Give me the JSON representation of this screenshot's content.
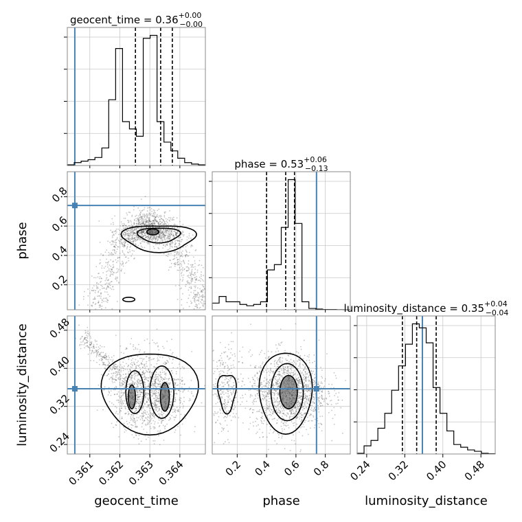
{
  "chart_data": {
    "type": "corner",
    "colors": {
      "truth": "#4682b4",
      "hist": "#000000",
      "grid": "#c8c8c8",
      "scatter": "#555555",
      "frame": "#888888"
    },
    "parameters": [
      {
        "key": "geocent_time",
        "label": "geocent_time",
        "title": {
          "prefix": "geocent_time = 0.36",
          "sup": "+0.00",
          "sub": "−0.00"
        },
        "range": [
          0.36025,
          0.36485
        ],
        "ticks": [
          0.361,
          0.362,
          0.363,
          0.364
        ],
        "tick_labels": [
          "0.361",
          "0.362",
          "0.363",
          "0.364"
        ],
        "truth": 0.3605,
        "quantiles": [
          0.36252,
          0.36336,
          0.36375
        ],
        "hist": {
          "edges": [
            0.36025,
            0.36048,
            0.36071,
            0.36094,
            0.36117,
            0.3614,
            0.36163,
            0.36186,
            0.36209,
            0.36232,
            0.36255,
            0.36278,
            0.36301,
            0.36324,
            0.36347,
            0.3637,
            0.36393,
            0.36416,
            0.36439,
            0.36462,
            0.36485
          ],
          "counts": [
            0.005,
            0.02,
            0.03,
            0.04,
            0.055,
            0.12,
            0.45,
            0.8,
            0.3,
            0.25,
            0.2,
            0.87,
            0.89,
            0.3,
            0.16,
            0.1,
            0.05,
            0.02,
            0.01,
            0.005
          ]
        }
      },
      {
        "key": "phase",
        "label": "phase",
        "title": {
          "prefix": "phase = 0.53",
          "sup": "+0.06",
          "sub": "−0.13"
        },
        "range": [
          0.03,
          0.97
        ],
        "ticks": [
          0.2,
          0.4,
          0.6,
          0.8
        ],
        "tick_labels": [
          "0.2",
          "0.4",
          "0.6",
          "0.8"
        ],
        "truth": 0.74,
        "quantiles": [
          0.4,
          0.53,
          0.59
        ],
        "hist": {
          "edges": [
            0.03,
            0.077,
            0.124,
            0.171,
            0.218,
            0.265,
            0.312,
            0.359,
            0.406,
            0.453,
            0.5,
            0.547,
            0.594,
            0.641,
            0.688,
            0.735,
            0.782,
            0.829,
            0.876,
            0.923,
            0.97
          ],
          "counts": [
            0.05,
            0.1,
            0.06,
            0.06,
            0.04,
            0.03,
            0.04,
            0.06,
            0.3,
            0.34,
            0.62,
            0.98,
            0.65,
            0.06,
            0.01,
            0.005,
            0.002,
            0.002,
            0.001,
            0.0
          ]
        }
      },
      {
        "key": "luminosity_distance",
        "label": "luminosity_distance",
        "title": {
          "prefix": "luminosity_distance = 0.35",
          "sup": "+0.04",
          "sub": "−0.04"
        },
        "range": [
          0.22,
          0.51
        ],
        "ticks": [
          0.24,
          0.32,
          0.4,
          0.48
        ],
        "tick_labels": [
          "0.24",
          "0.32",
          "0.40",
          "0.48"
        ],
        "truth": 0.357,
        "quantiles": [
          0.315,
          0.345,
          0.386
        ],
        "hist": {
          "edges": [
            0.22,
            0.2345,
            0.249,
            0.2635,
            0.278,
            0.2925,
            0.307,
            0.3215,
            0.336,
            0.3505,
            0.365,
            0.3795,
            0.394,
            0.4085,
            0.423,
            0.4375,
            0.452,
            0.4665,
            0.481,
            0.4955,
            0.51
          ],
          "counts": [
            0.005,
            0.06,
            0.1,
            0.19,
            0.3,
            0.47,
            0.65,
            0.81,
            0.96,
            0.93,
            0.82,
            0.49,
            0.3,
            0.17,
            0.07,
            0.05,
            0.03,
            0.02,
            0.005,
            0.002
          ]
        }
      }
    ]
  }
}
